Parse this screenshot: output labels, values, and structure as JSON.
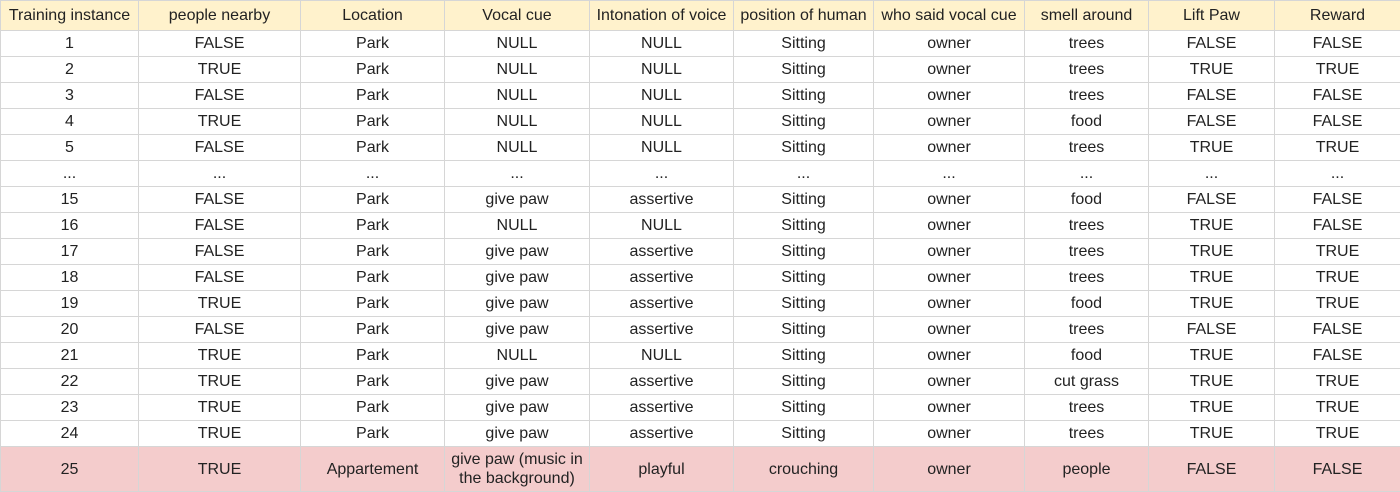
{
  "table": {
    "headers": [
      "Training instance",
      "people nearby",
      "Location",
      "Vocal cue",
      "Intonation of voice",
      "position of human",
      "who said vocal cue",
      "smell around",
      "Lift Paw",
      "Reward"
    ],
    "rows": [
      [
        "1",
        "FALSE",
        "Park",
        "NULL",
        "NULL",
        "Sitting",
        "owner",
        "trees",
        "FALSE",
        "FALSE"
      ],
      [
        "2",
        "TRUE",
        "Park",
        "NULL",
        "NULL",
        "Sitting",
        "owner",
        "trees",
        "TRUE",
        "TRUE"
      ],
      [
        "3",
        "FALSE",
        "Park",
        "NULL",
        "NULL",
        "Sitting",
        "owner",
        "trees",
        "FALSE",
        "FALSE"
      ],
      [
        "4",
        "TRUE",
        "Park",
        "NULL",
        "NULL",
        "Sitting",
        "owner",
        "food",
        "FALSE",
        "FALSE"
      ],
      [
        "5",
        "FALSE",
        "Park",
        "NULL",
        "NULL",
        "Sitting",
        "owner",
        "trees",
        "TRUE",
        "TRUE"
      ],
      [
        "...",
        "...",
        "...",
        "...",
        "...",
        "...",
        "...",
        "...",
        "...",
        "..."
      ],
      [
        "15",
        "FALSE",
        "Park",
        "give paw",
        "assertive",
        "Sitting",
        "owner",
        "food",
        "FALSE",
        "FALSE"
      ],
      [
        "16",
        "FALSE",
        "Park",
        "NULL",
        "NULL",
        "Sitting",
        "owner",
        "trees",
        "TRUE",
        "FALSE"
      ],
      [
        "17",
        "FALSE",
        "Park",
        "give paw",
        "assertive",
        "Sitting",
        "owner",
        "trees",
        "TRUE",
        "TRUE"
      ],
      [
        "18",
        "FALSE",
        "Park",
        "give paw",
        "assertive",
        "Sitting",
        "owner",
        "trees",
        "TRUE",
        "TRUE"
      ],
      [
        "19",
        "TRUE",
        "Park",
        "give paw",
        "assertive",
        "Sitting",
        "owner",
        "food",
        "TRUE",
        "TRUE"
      ],
      [
        "20",
        "FALSE",
        "Park",
        "give paw",
        "assertive",
        "Sitting",
        "owner",
        "trees",
        "FALSE",
        "FALSE"
      ],
      [
        "21",
        "TRUE",
        "Park",
        "NULL",
        "NULL",
        "Sitting",
        "owner",
        "food",
        "TRUE",
        "FALSE"
      ],
      [
        "22",
        "TRUE",
        "Park",
        "give paw",
        "assertive",
        "Sitting",
        "owner",
        "cut grass",
        "TRUE",
        "TRUE"
      ],
      [
        "23",
        "TRUE",
        "Park",
        "give paw",
        "assertive",
        "Sitting",
        "owner",
        "trees",
        "TRUE",
        "TRUE"
      ],
      [
        "24",
        "TRUE",
        "Park",
        "give paw",
        "assertive",
        "Sitting",
        "owner",
        "trees",
        "TRUE",
        "TRUE"
      ],
      [
        "25",
        "TRUE",
        "Appartement",
        "give paw (music in the background)",
        "playful",
        "crouching",
        "owner",
        "people",
        "FALSE",
        "FALSE"
      ]
    ],
    "highlighted_row_index": 16
  },
  "colors": {
    "header_background": "#fff2cc",
    "highlight_background": "#f4cccc",
    "grid_lines": "#d6d6d6",
    "text": "#222222"
  }
}
